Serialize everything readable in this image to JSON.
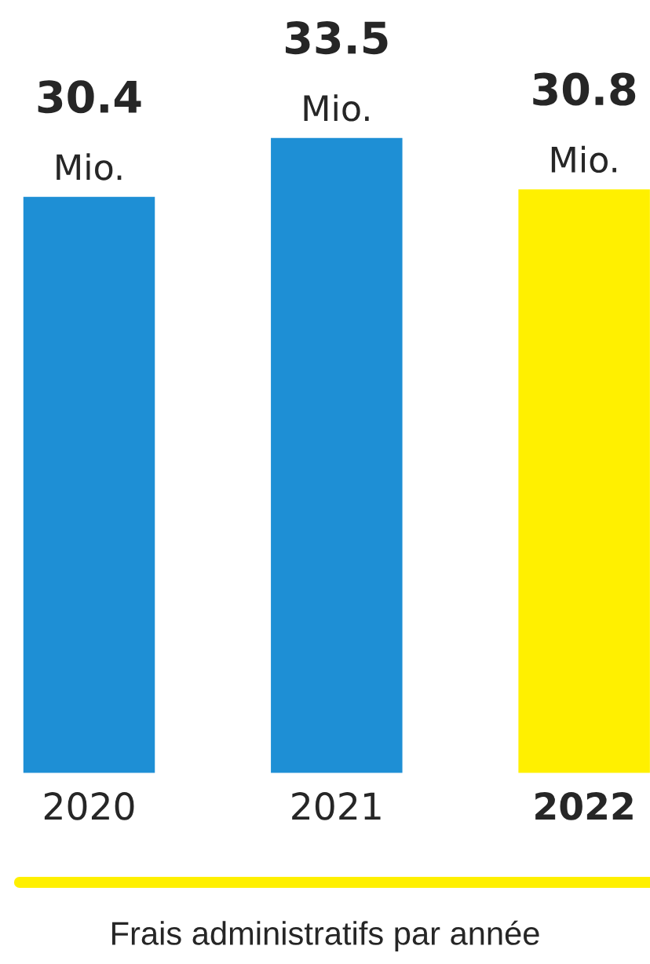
{
  "chart_data": {
    "type": "bar",
    "categories": [
      "2020",
      "2021",
      "2022"
    ],
    "values": [
      30.4,
      33.5,
      30.8
    ],
    "colors": [
      "#1e8fd5",
      "#1e8fd5",
      "#fff000"
    ],
    "value_labels": [
      "30.4\nMio.",
      "33.5\nMio.",
      "30.8\nMio."
    ],
    "annotations": [
      "Frais administratifs par année"
    ],
    "grid": false,
    "legend": false
  }
}
